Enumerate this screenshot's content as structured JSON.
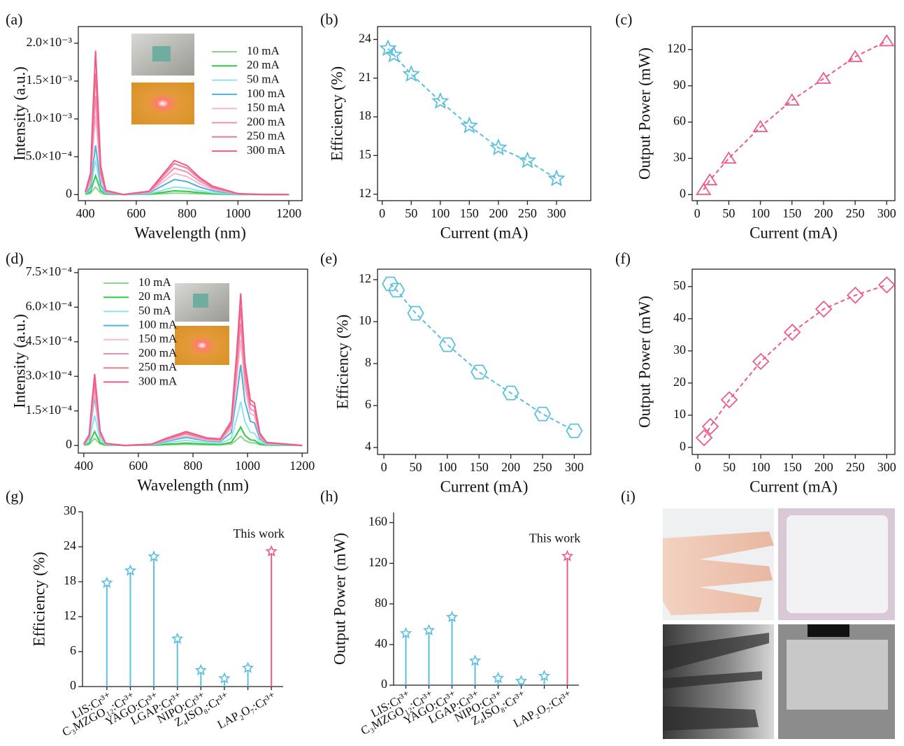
{
  "chart_data": [
    {
      "panel": "(a)",
      "type": "spectrum",
      "x_label": "Wavelength (nm)",
      "y_label": "Intensity (a.u.)",
      "x": [
        400,
        420,
        430,
        440,
        450,
        460,
        480,
        550,
        650,
        700,
        750,
        800,
        850,
        900,
        1000,
        1100,
        1200
      ],
      "xlim": [
        372,
        1252
      ],
      "xticks": [
        400,
        600,
        800,
        1000,
        1200
      ],
      "ylim": [
        -8e-05,
        0.00222
      ],
      "yticks": [
        0,
        {
          "value": 0.0005,
          "label": "5.0×10⁻⁴"
        },
        {
          "value": 0.001,
          "label": "1.0×10⁻³"
        },
        {
          "value": 0.0015,
          "label": "1.5×10⁻³"
        },
        {
          "value": 0.002,
          "label": "2.0×10⁻³"
        }
      ],
      "series": [
        {
          "name": "10 mA",
          "color": "#8fd18f",
          "values": [
            2e-06,
            1.5e-05,
            6e-05,
            0.0001,
            6e-05,
            2e-05,
            3e-06,
            0,
            2e-06,
            1.1e-05,
            2e-05,
            1.7e-05,
            1e-05,
            5e-06,
            6e-07,
            0,
            0
          ]
        },
        {
          "name": "20 mA",
          "color": "#2ecc40",
          "values": [
            5e-06,
            3.75e-05,
            0.00015,
            0.00025,
            0.00015,
            5e-05,
            7.5e-06,
            0,
            5e-06,
            2.75e-05,
            5e-05,
            4.25e-05,
            2.5e-05,
            1.25e-05,
            1.5e-06,
            0,
            0
          ]
        },
        {
          "name": "50 mA",
          "color": "#8ee3ef",
          "values": [
            9e-06,
            6.75e-05,
            0.00027,
            0.00045,
            0.00027,
            9e-05,
            1.35e-05,
            0,
            1e-05,
            5.5e-05,
            0.0001,
            8.5e-05,
            5e-05,
            2.5e-05,
            3e-06,
            0,
            0
          ]
        },
        {
          "name": "100 mA",
          "color": "#4fb3d9",
          "values": [
            1.3e-05,
            9.75e-05,
            0.00039,
            0.00065,
            0.00039,
            0.00013,
            1.95e-05,
            0,
            2e-05,
            0.00011,
            0.0002,
            0.00017,
            0.0001,
            5e-05,
            6e-06,
            0,
            0
          ]
        },
        {
          "name": "150 mA",
          "color": "#f7b8cf",
          "values": [
            2.1e-05,
            0.0001575,
            0.00063,
            0.00105,
            0.00063,
            0.00021,
            3.15e-05,
            0,
            2.8e-05,
            0.000154,
            0.00028,
            0.000238,
            0.00014,
            7e-05,
            8.4e-06,
            0,
            0
          ]
        },
        {
          "name": "200 mA",
          "color": "#f08db5",
          "values": [
            2.6e-05,
            0.000195,
            0.00078,
            0.0013,
            0.00078,
            0.00026,
            3.9e-05,
            0,
            3.5e-05,
            0.0001925,
            0.00035,
            0.0002975,
            0.000175,
            8.75e-05,
            1.05e-05,
            0,
            0
          ]
        },
        {
          "name": "250 mA",
          "color": "#f07a8a",
          "values": [
            3.2e-05,
            0.00024,
            0.00096,
            0.0016,
            0.00096,
            0.00032,
            4.8e-05,
            0,
            4.1e-05,
            0.0002255,
            0.00041,
            0.0003485,
            0.000205,
            0.0001025,
            1.23e-05,
            0,
            0
          ]
        },
        {
          "name": "300 mA",
          "color": "#ee5b8a",
          "values": [
            3.8e-05,
            0.000285,
            0.00114,
            0.0019,
            0.00114,
            0.00038,
            5.7e-05,
            0,
            4.5e-05,
            0.0002475,
            0.00045,
            0.0003825,
            0.000225,
            0.0001125,
            1.35e-05,
            0,
            0
          ]
        }
      ]
    },
    {
      "panel": "(b)",
      "type": "line",
      "marker": "star",
      "color": "#5bc0de",
      "x_label": "Current (mA)",
      "y_label": "Efficiency (%)",
      "x": [
        10,
        20,
        50,
        100,
        150,
        200,
        250,
        300
      ],
      "values": [
        23.3,
        22.8,
        21.3,
        19.2,
        17.3,
        15.6,
        14.6,
        13.2
      ],
      "xlim": [
        -8,
        359
      ],
      "xticks": [
        0,
        50,
        100,
        150,
        200,
        250,
        300
      ],
      "ylim": [
        11.5,
        25
      ],
      "yticks": [
        12,
        15,
        18,
        21,
        24
      ]
    },
    {
      "panel": "(c)",
      "type": "line",
      "marker": "triangle",
      "color": "#ec5a8e",
      "x_label": "Current (mA)",
      "y_label": "Output Power (mW)",
      "x": [
        10,
        20,
        50,
        100,
        150,
        200,
        250,
        300
      ],
      "values": [
        4,
        12,
        30,
        56,
        78,
        96,
        114,
        127
      ],
      "xlim": [
        -8,
        313
      ],
      "xticks": [
        0,
        50,
        100,
        150,
        200,
        250,
        300
      ],
      "ylim": [
        -5,
        139
      ],
      "yticks": [
        0,
        30,
        60,
        90,
        120
      ]
    },
    {
      "panel": "(d)",
      "type": "spectrum",
      "x_label": "Wavelength (nm)",
      "y_label": "Intensity (a.u.)",
      "x": [
        400,
        420,
        430,
        440,
        450,
        460,
        480,
        550,
        650,
        700,
        775,
        850,
        900,
        940,
        960,
        975,
        990,
        1010,
        1025,
        1045,
        1070,
        1200
      ],
      "xlim": [
        380,
        1220
      ],
      "xticks": [
        400,
        600,
        800,
        1000,
        1200
      ],
      "ylim": [
        -3.3e-05,
        0.000765
      ],
      "yticks": [
        0,
        {
          "value": 0.00015,
          "label": "1.5×10⁻⁴"
        },
        {
          "value": 0.0003,
          "label": "3.0×10⁻⁴"
        },
        {
          "value": 0.00045,
          "label": "4.5×10⁻⁴"
        },
        {
          "value": 0.0006,
          "label": "6.0×10⁻⁴"
        },
        {
          "value": 0.00075,
          "label": "7.5×10⁻⁴"
        }
      ],
      "series": [
        {
          "name": "10 mA",
          "color": "#8fd18f",
          "values": [
            6e-07,
            4.5e-06,
            1.8e-05,
            3e-05,
            1.8e-05,
            6e-06,
            9e-07,
            0,
            5e-07,
            2.5e-06,
            5e-06,
            2.8e-06,
            2.1e-06,
            6.5e-06,
            2.43e-05,
            4e-05,
            2.2e-05,
            1.2e-05,
            1.12e-05,
            3.2e-06,
            8e-07,
            0
          ]
        },
        {
          "name": "20 mA",
          "color": "#2ecc40",
          "values": [
            1.2e-06,
            9e-06,
            3.6e-05,
            6e-05,
            3.6e-05,
            1.2e-05,
            1.8e-06,
            0,
            1e-06,
            5e-06,
            1e-05,
            5.5e-06,
            4.1e-06,
            1.3e-05,
            4.85e-05,
            8e-05,
            4.4e-05,
            2.4e-05,
            2.24e-05,
            6.4e-06,
            1.6e-06,
            0
          ]
        },
        {
          "name": "50 mA",
          "color": "#8ee3ef",
          "values": [
            2.6e-06,
            1.95e-05,
            7.8e-05,
            0.00013,
            7.8e-05,
            2.6e-05,
            3.9e-06,
            0,
            2.2e-06,
            1.1e-05,
            2.2e-05,
            1.21e-05,
            9.3e-06,
            3.07e-05,
            0.0001151,
            0.00019,
            0.0001045,
            5.7e-05,
            5.32e-05,
            1.52e-05,
            3.8e-06,
            0
          ]
        },
        {
          "name": "100 mA",
          "color": "#4fb3d9",
          "values": [
            4.2e-06,
            3.15e-05,
            0.000126,
            0.00021,
            0.000126,
            4.2e-05,
            6.3e-06,
            0,
            3.5e-06,
            1.75e-05,
            3.5e-05,
            1.93e-05,
            1.58e-05,
            5.6e-05,
            0.0002118,
            0.00035,
            0.0001925,
            0.000105,
            9.8e-05,
            2.8e-05,
            7e-06,
            0
          ]
        },
        {
          "name": "150 mA",
          "color": "#f7b8cf",
          "values": [
            4.6e-06,
            3.45e-05,
            0.000138,
            0.00023,
            0.000138,
            4.6e-05,
            6.9e-06,
            0,
            4.2e-06,
            2.1e-05,
            4.2e-05,
            2.31e-05,
            1.97e-05,
            7.32e-05,
            0.0002781,
            0.00046,
            0.000253,
            0.000138,
            0.0001288,
            3.68e-05,
            9.2e-06,
            0
          ]
        },
        {
          "name": "200 mA",
          "color": "#f08db5",
          "values": [
            5.2e-06,
            3.9e-05,
            0.000156,
            0.00026,
            0.000156,
            5.2e-05,
            7.8e-06,
            0,
            5e-06,
            2.5e-05,
            5e-05,
            2.75e-05,
            2.31e-05,
            8.45e-05,
            0.0003205,
            0.00053,
            0.0002915,
            0.000159,
            0.0001484,
            4.24e-05,
            1.06e-05,
            0
          ]
        },
        {
          "name": "250 mA",
          "color": "#f07a8a",
          "values": [
            5.8e-06,
            4.35e-05,
            0.000174,
            0.00029,
            0.000174,
            5.8e-05,
            8.7e-06,
            0,
            5.5e-06,
            2.75e-05,
            5.5e-05,
            3.03e-05,
            2.58e-05,
            9.55e-05,
            0.0003628,
            0.0006,
            0.00033,
            0.00018,
            0.000168,
            4.8e-05,
            1.2e-05,
            0
          ]
        },
        {
          "name": "300 mA",
          "color": "#ee5b8a",
          "values": [
            6.2e-06,
            4.65e-05,
            0.000186,
            0.00031,
            0.000186,
            6.2e-05,
            9.3e-06,
            0,
            6e-06,
            3e-05,
            6e-05,
            3.3e-05,
            2.82e-05,
            0.000105,
            0.000399,
            0.00066,
            0.000363,
            0.000198,
            0.0001848,
            5.28e-05,
            1.32e-05,
            0
          ]
        }
      ]
    },
    {
      "panel": "(e)",
      "type": "line",
      "marker": "hexagon",
      "color": "#5bc0de",
      "x_label": "Current (mA)",
      "y_label": "Efficiency (%)",
      "x": [
        10,
        20,
        50,
        100,
        150,
        200,
        250,
        300
      ],
      "values": [
        11.8,
        11.5,
        10.4,
        8.9,
        7.6,
        6.6,
        5.6,
        4.8
      ],
      "xlim": [
        -10,
        326
      ],
      "xticks": [
        0,
        50,
        100,
        150,
        200,
        250,
        300
      ],
      "ylim": [
        3.67,
        12.5
      ],
      "yticks": [
        4,
        6,
        8,
        10,
        12
      ]
    },
    {
      "panel": "(f)",
      "type": "line",
      "marker": "diamond",
      "color": "#ec5a8e",
      "x_label": "Current (mA)",
      "y_label": "Output Power (mW)",
      "x": [
        10,
        20,
        50,
        100,
        150,
        200,
        250,
        300
      ],
      "values": [
        3,
        6.5,
        14.8,
        26.7,
        35.8,
        43,
        47.3,
        50.5
      ],
      "xlim": [
        -9,
        313
      ],
      "xticks": [
        0,
        50,
        100,
        150,
        200,
        250,
        300
      ],
      "ylim": [
        -2.2,
        55.4
      ],
      "yticks": [
        0,
        10,
        20,
        30,
        40,
        50
      ]
    },
    {
      "panel": "(g)",
      "type": "stem",
      "y_label": "Efficiency (%)",
      "annotation": "This work",
      "categories": [
        "LIS:Cr³⁺",
        "C₃MZGO₁₂:Cr³⁺",
        "YAGO:Cr³⁺",
        "LGAP:Cr³⁺",
        "NIPO:Cr³⁺",
        "Z₄ISO₈:Cr³⁺",
        null,
        "LAP₂O₇:Cr³⁺"
      ],
      "values": [
        17.8,
        19.9,
        22.3,
        8.2,
        2.8,
        1.4,
        3.2,
        23.2
      ],
      "colors": [
        "#5bc0de",
        "#5bc0de",
        "#5bc0de",
        "#5bc0de",
        "#5bc0de",
        "#5bc0de",
        "#5bc0de",
        "#ec5a8e"
      ],
      "ylim": [
        0,
        30
      ],
      "yticks": [
        0,
        6,
        12,
        18,
        24,
        30
      ]
    },
    {
      "panel": "(h)",
      "type": "stem",
      "y_label": "Output Power (mW)",
      "annotation": "This work",
      "categories": [
        "LIS:Cr³⁺",
        "C₃MZGO₁₂:Cr³⁺",
        "YAGO:Cr³⁺",
        "LGAP:Cr³⁺",
        "NIPO:Cr³⁺",
        "Z₄ISO₈:Cr³⁺",
        null,
        "LAP₂O₇:Cr³⁺"
      ],
      "values": [
        51,
        54,
        67,
        24,
        7,
        4,
        9,
        127
      ],
      "colors": [
        "#5bc0de",
        "#5bc0de",
        "#5bc0de",
        "#5bc0de",
        "#5bc0de",
        "#5bc0de",
        "#5bc0de",
        "#ec5a8e"
      ],
      "ylim": [
        0,
        170
      ],
      "yticks": [
        0,
        40,
        80,
        120,
        160
      ]
    }
  ],
  "photos": {
    "panel": "(i)"
  }
}
